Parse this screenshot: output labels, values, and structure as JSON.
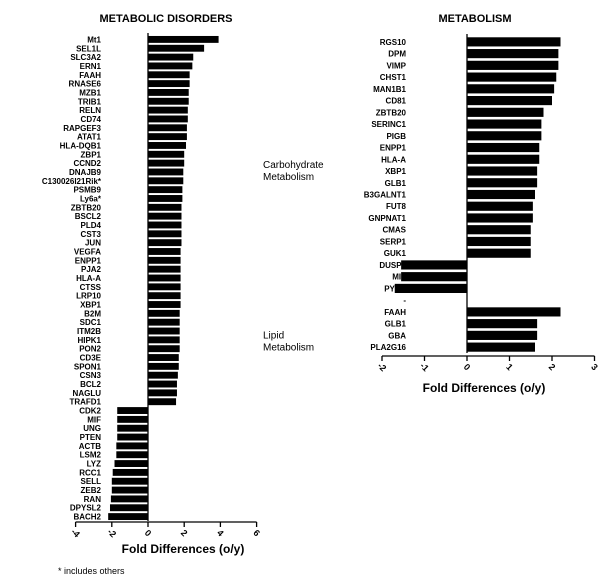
{
  "footnote": "* includes others",
  "chart_data": [
    {
      "type": "bar",
      "orientation": "horizontal",
      "title": "METABOLIC DISORDERS",
      "xlabel": "Fold Differences (o/y)",
      "ylabel": "",
      "xlim": [
        -4,
        6
      ],
      "xticks": [
        -4,
        -2,
        0,
        2,
        4,
        6
      ],
      "grid": false,
      "categories": [
        "Mt1",
        "SEL1L",
        "SLC3A2",
        "ERN1",
        "FAAH",
        "RNASE6",
        "MZB1",
        "TRIB1",
        "RELN",
        "CD74",
        "RAPGEF3",
        "ATAT1",
        "HLA-DQB1",
        "ZBP1",
        "CCND2",
        "DNAJB9",
        "C130026I21Rik*",
        "PSMB9",
        "Ly6a*",
        "ZBTB20",
        "BSCL2",
        "PLD4",
        "CST3",
        "JUN",
        "VEGFA",
        "ENPP1",
        "PJA2",
        "HLA-A",
        "CTSS",
        "LRP10",
        "XBP1",
        "B2M",
        "SDC1",
        "ITM2B",
        "HIPK1",
        "PON2",
        "CD3E",
        "SPON1",
        "CSN3",
        "BCL2",
        "NAGLU",
        "TRAFD1",
        "CDK2",
        "MIF",
        "UNG",
        "PTEN",
        "ACTB",
        "LSM2",
        "LYZ",
        "RCC1",
        "SELL",
        "ZEB2",
        "RAN",
        "DPYSL2",
        "BACH2"
      ],
      "values": [
        3.9,
        3.1,
        2.5,
        2.45,
        2.3,
        2.3,
        2.25,
        2.25,
        2.2,
        2.2,
        2.15,
        2.15,
        2.1,
        2.0,
        2.0,
        1.95,
        1.95,
        1.9,
        1.9,
        1.85,
        1.85,
        1.85,
        1.85,
        1.85,
        1.8,
        1.8,
        1.8,
        1.8,
        1.8,
        1.8,
        1.8,
        1.75,
        1.75,
        1.75,
        1.75,
        1.75,
        1.7,
        1.7,
        1.65,
        1.6,
        1.6,
        1.55,
        -1.7,
        -1.7,
        -1.7,
        -1.7,
        -1.75,
        -1.75,
        -1.85,
        -1.95,
        -2.0,
        -2.0,
        -2.05,
        -2.1,
        -2.2
      ]
    },
    {
      "type": "bar",
      "orientation": "horizontal",
      "title": "METABOLISM",
      "xlabel": "Fold Differences (o/y)",
      "ylabel": "",
      "xlim": [
        -2,
        3
      ],
      "xticks": [
        -2,
        -1,
        0,
        1,
        2,
        3
      ],
      "grid": false,
      "groups": [
        {
          "name": "Carbohydrate Metabolism",
          "lines": [
            "Carbohydrate",
            "Metabolism"
          ],
          "start": 0,
          "end": 22
        },
        {
          "name": "Lipid Metabolism",
          "lines": [
            "Lipid",
            "Metabolism"
          ],
          "start": 24,
          "end": 27
        }
      ],
      "categories": [
        "RGS10",
        "DPM",
        "VIMP",
        "CHST1",
        "MAN1B1",
        "CD81",
        "ZBTB20",
        "SERINC1",
        "PIGB",
        "ENPP1",
        "HLA-A",
        "XBP1",
        "GLB1",
        "B3GALNT1",
        "FUT8",
        "GNPNAT1",
        "CMAS",
        "SERP1",
        "GUK1",
        "DUSP6",
        "MIF",
        "PYGL",
        "-",
        "FAAH",
        "GLB1",
        "GBA",
        "PLA2G16"
      ],
      "values": [
        2.2,
        2.15,
        2.15,
        2.1,
        2.05,
        2.0,
        1.8,
        1.75,
        1.75,
        1.7,
        1.7,
        1.65,
        1.65,
        1.6,
        1.55,
        1.55,
        1.5,
        1.5,
        1.5,
        -1.55,
        -1.55,
        -1.7,
        null,
        2.2,
        1.65,
        1.65,
        1.6
      ]
    }
  ]
}
